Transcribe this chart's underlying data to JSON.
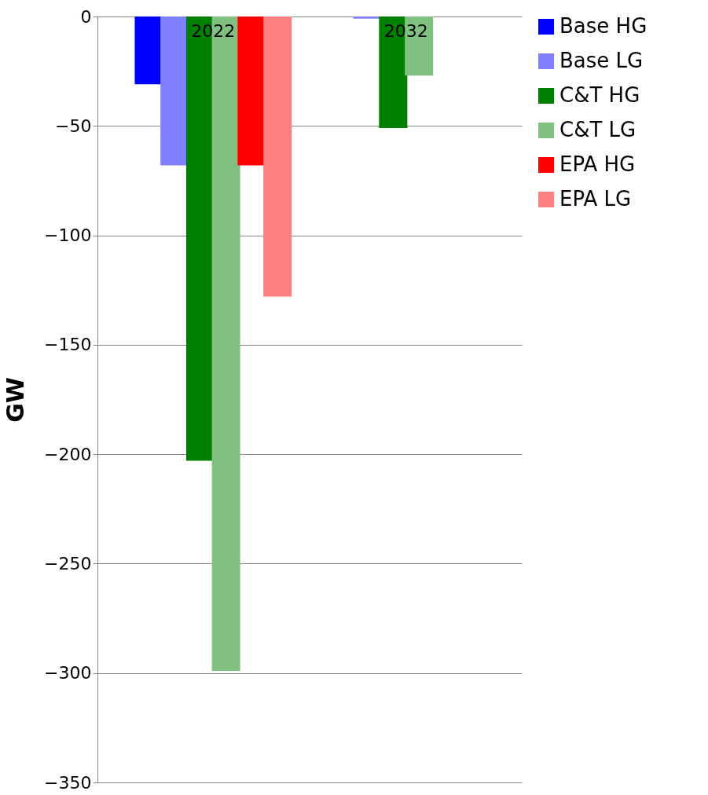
{
  "chart_data": {
    "type": "bar",
    "ylabel": "GW",
    "categories": [
      "2022",
      "2032"
    ],
    "series": [
      {
        "name": "Base HG",
        "color": "#0000ff",
        "values": [
          -31,
          0
        ]
      },
      {
        "name": "Base LG",
        "color": "#8080ff",
        "values": [
          -68,
          -1
        ]
      },
      {
        "name": "C&T HG",
        "color": "#008000",
        "values": [
          -203,
          -51
        ]
      },
      {
        "name": "C&T LG",
        "color": "#80c080",
        "values": [
          -299,
          -27
        ]
      },
      {
        "name": "EPA HG",
        "color": "#ff0000",
        "values": [
          -68,
          0
        ]
      },
      {
        "name": "EPA LG",
        "color": "#ff8080",
        "values": [
          -128,
          0
        ]
      }
    ],
    "ylim": [
      -350,
      0
    ],
    "yticks": [
      0,
      -50,
      -100,
      -150,
      -200,
      -250,
      -300,
      -350
    ],
    "grid": "y",
    "legend": "right"
  }
}
